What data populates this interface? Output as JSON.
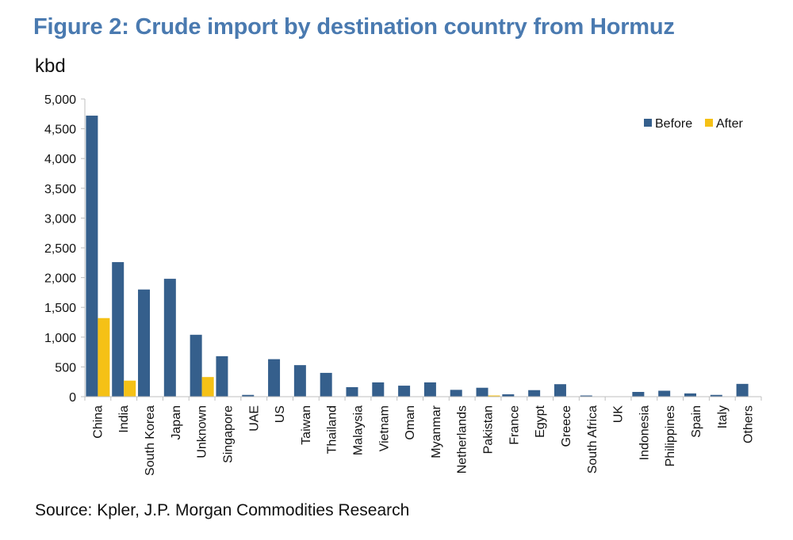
{
  "title": "Figure 2: Crude import by destination country from Hormuz",
  "unit_label": "kbd",
  "source": "Source: Kpler, J.P. Morgan Commodities Research",
  "colors": {
    "before": "#355f8c",
    "after": "#f5c116",
    "axis": "#bfbfbf",
    "title": "#4a7ab0"
  },
  "chart_data": {
    "type": "bar",
    "title": "Figure 2: Crude import by destination country from Hormuz",
    "xlabel": "",
    "ylabel": "kbd",
    "ylim": [
      0,
      5000
    ],
    "yticks": [
      0,
      500,
      1000,
      1500,
      2000,
      2500,
      3000,
      3500,
      4000,
      4500,
      5000
    ],
    "ytick_labels": [
      "0",
      "500",
      "1,000",
      "1,500",
      "2,000",
      "2,500",
      "3,000",
      "3,500",
      "4,000",
      "4,500",
      "5,000"
    ],
    "grid": false,
    "legend_position": "top-right",
    "categories": [
      "China",
      "India",
      "South Korea",
      "Japan",
      "Unknown",
      "Singapore",
      "UAE",
      "US",
      "Taiwan",
      "Thailand",
      "Malaysia",
      "Vietnam",
      "Oman",
      "Myanmar",
      "Netherlands",
      "Pakistan",
      "France",
      "Egypt",
      "Greece",
      "South Africa",
      "UK",
      "Indonesia",
      "Philippines",
      "Spain",
      "Italy",
      "Others"
    ],
    "series": [
      {
        "name": "Before",
        "values": [
          4720,
          2260,
          1800,
          1980,
          1040,
          680,
          30,
          630,
          530,
          400,
          160,
          240,
          185,
          240,
          115,
          150,
          40,
          110,
          210,
          20,
          0,
          80,
          100,
          55,
          30,
          215
        ]
      },
      {
        "name": "After",
        "values": [
          1320,
          270,
          0,
          0,
          330,
          0,
          0,
          0,
          0,
          0,
          0,
          0,
          0,
          0,
          0,
          15,
          0,
          0,
          0,
          0,
          0,
          0,
          0,
          0,
          0,
          0
        ]
      }
    ]
  }
}
